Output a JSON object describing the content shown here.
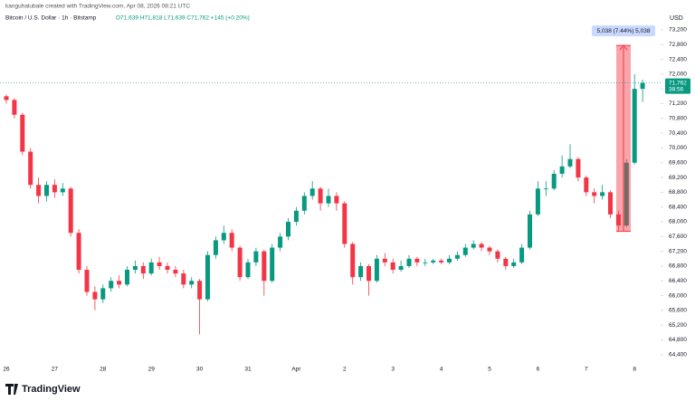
{
  "header": {
    "credit": "kanguhalubale created with TradingView.com, Apr 08, 2026 08:21 UTC",
    "symbol": "Bitcoin / U.S. Dollar · 1h · Bitstamp",
    "ohlc": "O71,639 H71,818 L71,639 C71,762 +145 (+0.20%)"
  },
  "logo": "TradingView",
  "chart_data": {
    "type": "candlestick",
    "currency": "USD",
    "up_color": "#089981",
    "down_color": "#f23645",
    "categories": [
      "26",
      null,
      null,
      null,
      null,
      null,
      "27",
      null,
      null,
      null,
      null,
      null,
      "28",
      null,
      null,
      null,
      null,
      null,
      "29",
      null,
      null,
      null,
      null,
      null,
      "30",
      null,
      null,
      null,
      null,
      null,
      "31",
      null,
      null,
      null,
      null,
      null,
      "Apr",
      null,
      null,
      null,
      null,
      null,
      "2",
      null,
      null,
      null,
      null,
      null,
      "3",
      null,
      null,
      null,
      null,
      null,
      "4",
      null,
      null,
      null,
      null,
      null,
      "5",
      null,
      null,
      null,
      null,
      null,
      "6",
      null,
      null,
      null,
      null,
      null,
      "7",
      null,
      null,
      null,
      null,
      null,
      "8",
      null
    ],
    "candles": [
      [
        71400,
        71450,
        71200,
        71300
      ],
      [
        71300,
        71350,
        70800,
        70900
      ],
      [
        70900,
        70950,
        69800,
        69900
      ],
      [
        69900,
        70000,
        68900,
        69000
      ],
      [
        69000,
        69200,
        68500,
        68700
      ],
      [
        68700,
        69100,
        68550,
        69000
      ],
      [
        69000,
        69150,
        68650,
        68800
      ],
      [
        68800,
        69050,
        68700,
        68900
      ],
      [
        68900,
        68950,
        67600,
        67700
      ],
      [
        67700,
        67800,
        66600,
        66700
      ],
      [
        66700,
        66800,
        66000,
        66100
      ],
      [
        66100,
        66250,
        65600,
        65900
      ],
      [
        65900,
        66300,
        65800,
        66200
      ],
      [
        66200,
        66500,
        66100,
        66400
      ],
      [
        66400,
        66550,
        66200,
        66300
      ],
      [
        66300,
        66800,
        66250,
        66700
      ],
      [
        66700,
        66950,
        66600,
        66800
      ],
      [
        66800,
        66900,
        66450,
        66600
      ],
      [
        66600,
        67000,
        66550,
        66900
      ],
      [
        66900,
        67050,
        66700,
        66800
      ],
      [
        66800,
        66900,
        66600,
        66700
      ],
      [
        66700,
        66800,
        66500,
        66600
      ],
      [
        66600,
        66700,
        66200,
        66300
      ],
      [
        66300,
        66500,
        66200,
        66400
      ],
      [
        66400,
        66450,
        64950,
        65900
      ],
      [
        65900,
        67200,
        65850,
        67100
      ],
      [
        67100,
        67600,
        67000,
        67500
      ],
      [
        67500,
        67900,
        67400,
        67700
      ],
      [
        67700,
        67800,
        67200,
        67300
      ],
      [
        67300,
        67350,
        66400,
        66500
      ],
      [
        66500,
        67000,
        66450,
        66900
      ],
      [
        66900,
        67300,
        66800,
        67200
      ],
      [
        67200,
        67250,
        66000,
        66400
      ],
      [
        66400,
        67400,
        66350,
        67300
      ],
      [
        67300,
        67700,
        67200,
        67600
      ],
      [
        67600,
        68100,
        67500,
        68000
      ],
      [
        68000,
        68400,
        67900,
        68300
      ],
      [
        68300,
        68800,
        68200,
        68700
      ],
      [
        68700,
        69100,
        68600,
        68900
      ],
      [
        68900,
        68950,
        68300,
        68500
      ],
      [
        68500,
        68900,
        68400,
        68700
      ],
      [
        68700,
        68800,
        68300,
        68500
      ],
      [
        68500,
        68550,
        67300,
        67400
      ],
      [
        67400,
        67450,
        66300,
        66500
      ],
      [
        66500,
        66900,
        66400,
        66800
      ],
      [
        66800,
        66850,
        66000,
        66400
      ],
      [
        66400,
        67100,
        66350,
        67000
      ],
      [
        67000,
        67150,
        66800,
        66900
      ],
      [
        66900,
        67000,
        66600,
        66700
      ],
      [
        66700,
        66950,
        66650,
        66800
      ],
      [
        66800,
        67100,
        66750,
        67000
      ],
      [
        67000,
        67050,
        66800,
        66900
      ],
      [
        66900,
        67000,
        66800,
        66900
      ],
      [
        66900,
        67000,
        66850,
        66950
      ],
      [
        66950,
        67000,
        66850,
        66900
      ],
      [
        66900,
        67100,
        66850,
        67000
      ],
      [
        67000,
        67200,
        66950,
        67100
      ],
      [
        67100,
        67400,
        67050,
        67300
      ],
      [
        67300,
        67500,
        67250,
        67400
      ],
      [
        67400,
        67450,
        67200,
        67300
      ],
      [
        67300,
        67350,
        67100,
        67200
      ],
      [
        67200,
        67250,
        66900,
        67000
      ],
      [
        67000,
        67050,
        66700,
        66800
      ],
      [
        66800,
        67000,
        66750,
        66900
      ],
      [
        66900,
        67400,
        66850,
        67300
      ],
      [
        67300,
        68300,
        67250,
        68200
      ],
      [
        68200,
        69100,
        68150,
        68900
      ],
      [
        68900,
        69100,
        68700,
        68900
      ],
      [
        68900,
        69400,
        68850,
        69300
      ],
      [
        69300,
        69800,
        69200,
        69500
      ],
      [
        69500,
        70100,
        69450,
        69700
      ],
      [
        69700,
        69750,
        69100,
        69200
      ],
      [
        69200,
        69250,
        68700,
        68800
      ],
      [
        68800,
        68900,
        68500,
        68700
      ],
      [
        68700,
        69000,
        68600,
        68800
      ],
      [
        68800,
        68850,
        68100,
        68200
      ],
      [
        68200,
        68300,
        67740,
        67900
      ],
      [
        67900,
        69700,
        67850,
        69600
      ],
      [
        69600,
        72000,
        69550,
        71600
      ],
      [
        71600,
        71850,
        71250,
        71762
      ]
    ],
    "ylim": [
      64200,
      73370
    ],
    "yticks": [
      {
        "value": 64400,
        "label": "64,400"
      },
      {
        "value": 64800,
        "label": "64,800"
      },
      {
        "value": 65200,
        "label": "65,200"
      },
      {
        "value": 65600,
        "label": "65,600"
      },
      {
        "value": 66000,
        "label": "66,000"
      },
      {
        "value": 66400,
        "label": "66,400"
      },
      {
        "value": 66800,
        "label": "66,800"
      },
      {
        "value": 67200,
        "label": "67,200"
      },
      {
        "value": 67600,
        "label": "67,600"
      },
      {
        "value": 68000,
        "label": "68,000"
      },
      {
        "value": 68400,
        "label": "68,400"
      },
      {
        "value": 68800,
        "label": "68,800"
      },
      {
        "value": 69200,
        "label": "69,200"
      },
      {
        "value": 69600,
        "label": "69,600"
      },
      {
        "value": 70000,
        "label": "70,000"
      },
      {
        "value": 70400,
        "label": "70,400"
      },
      {
        "value": 70800,
        "label": "70,800"
      },
      {
        "value": 71200,
        "label": "71,200"
      },
      {
        "value": 71600,
        "label": "71,600"
      },
      {
        "value": 72000,
        "label": "72,000"
      },
      {
        "value": 72400,
        "label": "72,400"
      },
      {
        "value": 72800,
        "label": "72,800"
      },
      {
        "value": 73200,
        "label": "73,200"
      }
    ],
    "price_label": {
      "value": 71762,
      "label": "71,762"
    },
    "countdown": "38:56",
    "measure": {
      "from": 67740,
      "to": 72778,
      "label": "5,038 (7.44%) 5,038",
      "color": "#f23645"
    }
  }
}
